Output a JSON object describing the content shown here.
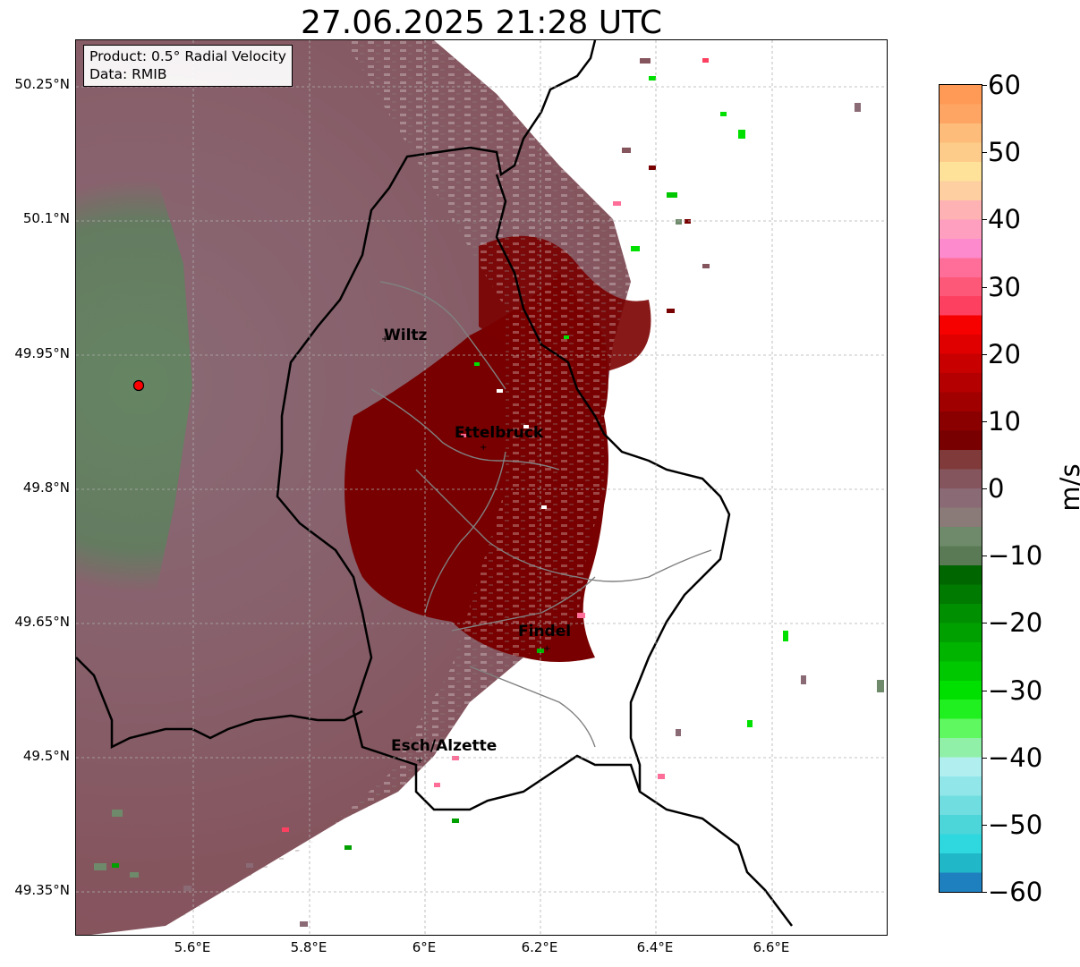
{
  "title": "27.06.2025 21:28 UTC",
  "info": {
    "product": "Product: 0.5° Radial Velocity",
    "data": "Data: RMIB"
  },
  "lat_labels": [
    "50.25°N",
    "50.1°N",
    "49.95°N",
    "49.8°N",
    "49.65°N",
    "49.5°N",
    "49.35°N"
  ],
  "lon_labels": [
    "5.6°E",
    "5.8°E",
    "6°E",
    "6.2°E",
    "6.4°E",
    "6.6°E"
  ],
  "cities": [
    "Wiltz",
    "Ettelbruck",
    "Findel",
    "Esch/Alzette"
  ],
  "colorbar": {
    "label": "m/s",
    "ticks": [
      "60",
      "50",
      "40",
      "30",
      "20",
      "10",
      "0",
      "−10",
      "−20",
      "−30",
      "−40",
      "−50",
      "−60"
    ],
    "colors": [
      "#fe9a55",
      "#fea564",
      "#febc7a",
      "#fecc8a",
      "#fee29a",
      "#fecfa0",
      "#feb2b3",
      "#fe9fc0",
      "#fe8ace",
      "#fe6e98",
      "#fe5878",
      "#fe4060",
      "#f60000",
      "#e00000",
      "#c80000",
      "#b40000",
      "#a00000",
      "#8a0000",
      "#780000",
      "#803a3a",
      "#85555e",
      "#8a6a75",
      "#8a7a78",
      "#6e8a6a",
      "#5a7a55",
      "#006600",
      "#007a00",
      "#008f00",
      "#00a000",
      "#00b400",
      "#00c800",
      "#00e000",
      "#20f020",
      "#60f860",
      "#90f0a8",
      "#b0eef0",
      "#90e6e8",
      "#70dde0",
      "#4cd6d9",
      "#2ed8de",
      "#20b8c8",
      "#1f80c0"
    ]
  },
  "colors": {
    "radar_site": "#ff0000",
    "border": "#000000",
    "canton_lines": "#808080",
    "velocity_base": "#8a6a75",
    "velocity_inbound": "#5f8a5f",
    "velocity_outbound": "#7a0000"
  }
}
